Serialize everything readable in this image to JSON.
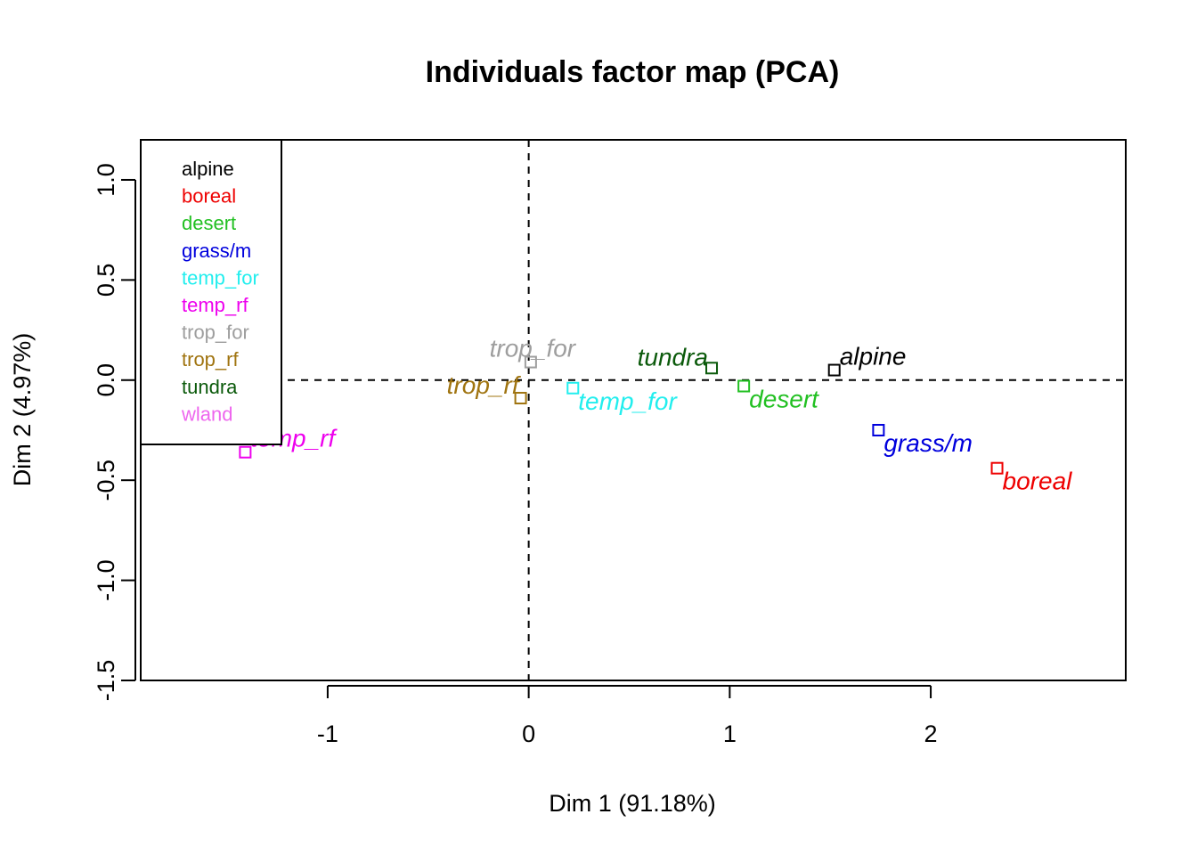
{
  "chart_data": {
    "type": "scatter",
    "title": "Individuals factor map (PCA)",
    "xlabel": "Dim 1 (91.18%)",
    "ylabel": "Dim 2 (4.97%)",
    "xlim": [
      -1.93,
      2.97
    ],
    "ylim": [
      -1.5,
      1.2
    ],
    "x_ticks": [
      -1,
      0,
      1,
      2
    ],
    "x_tick_labels": [
      "-1",
      "0",
      "1",
      "2"
    ],
    "y_ticks": [
      -1.5,
      -1.0,
      -0.5,
      0.0,
      0.5,
      1.0
    ],
    "y_tick_labels": [
      "-1.5",
      "-1.0",
      "-0.5",
      "0.0",
      "0.5",
      "1.0"
    ],
    "grid": false,
    "reference_lines": {
      "x": 0,
      "y": 0,
      "style": "dashed"
    },
    "legend": {
      "position": "top-left",
      "entries": [
        {
          "label": "alpine",
          "color": "#000000"
        },
        {
          "label": "boreal",
          "color": "#ee0000"
        },
        {
          "label": "desert",
          "color": "#22c022"
        },
        {
          "label": "grass/m",
          "color": "#0000dd"
        },
        {
          "label": "temp_for",
          "color": "#22eeee"
        },
        {
          "label": "temp_rf",
          "color": "#ee00ee"
        },
        {
          "label": "trop_for",
          "color": "#9e9e9e"
        },
        {
          "label": "trop_rf",
          "color": "#a07410"
        },
        {
          "label": "tundra",
          "color": "#0b5a0b"
        },
        {
          "label": "wland",
          "color": "#ee66ee"
        }
      ]
    },
    "points": [
      {
        "label": "alpine",
        "x": 1.52,
        "y": 0.05,
        "color": "#000000",
        "label_anchor": "right"
      },
      {
        "label": "boreal",
        "x": 2.33,
        "y": -0.44,
        "color": "#ee0000",
        "label_anchor": "below-right"
      },
      {
        "label": "desert",
        "x": 1.07,
        "y": -0.03,
        "color": "#22c022",
        "label_anchor": "below-right"
      },
      {
        "label": "grass/m",
        "x": 1.74,
        "y": -0.25,
        "color": "#0000dd",
        "label_anchor": "below-right"
      },
      {
        "label": "temp_for",
        "x": 0.22,
        "y": -0.04,
        "color": "#22eeee",
        "label_anchor": "below-right"
      },
      {
        "label": "temp_rf",
        "x": -1.41,
        "y": -0.36,
        "color": "#ee00ee",
        "label_anchor": "right"
      },
      {
        "label": "trop_for",
        "x": 0.01,
        "y": 0.09,
        "color": "#9e9e9e",
        "label_anchor": "above"
      },
      {
        "label": "trop_rf",
        "x": -0.04,
        "y": -0.09,
        "color": "#a07410",
        "label_anchor": "above-left"
      },
      {
        "label": "tundra",
        "x": 0.91,
        "y": 0.06,
        "color": "#0b5a0b",
        "label_anchor": "left"
      }
    ]
  }
}
